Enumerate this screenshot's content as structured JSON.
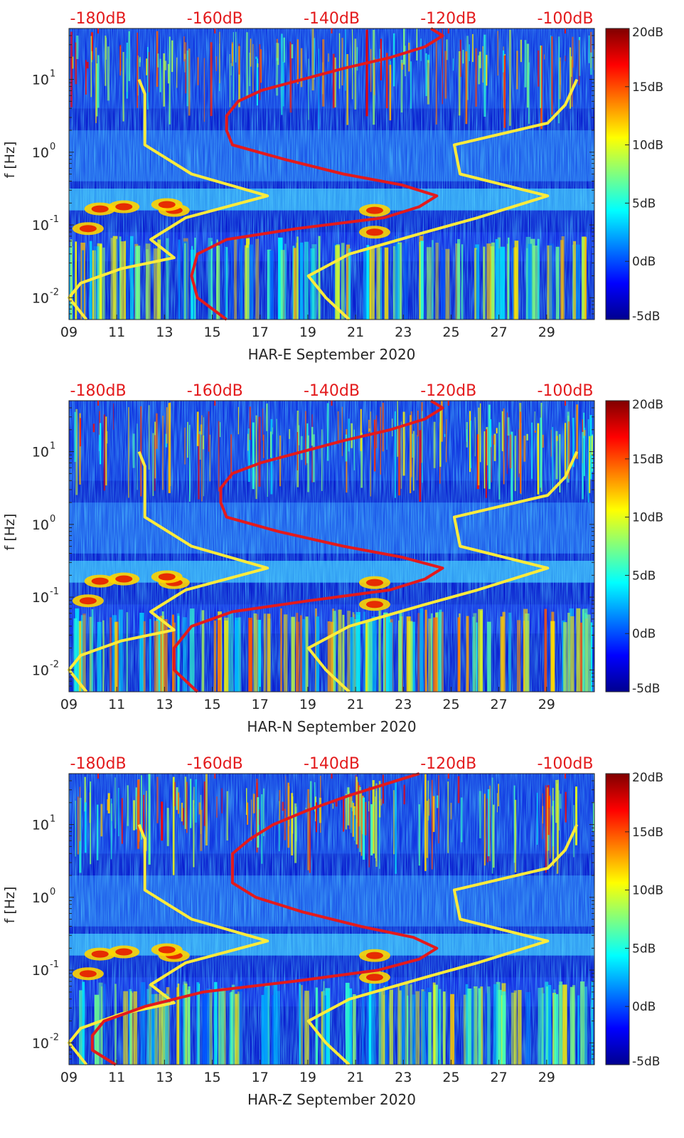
{
  "chart_data": [
    {
      "type": "heatmap",
      "title": "",
      "xlabel": "HAR-E September 2020",
      "ylabel": "f [Hz]",
      "x_ticks": [
        "09",
        "11",
        "13",
        "15",
        "17",
        "19",
        "21",
        "23",
        "25",
        "27",
        "29"
      ],
      "x_tick_values": [
        9,
        11,
        13,
        15,
        17,
        19,
        21,
        23,
        25,
        27,
        29
      ],
      "xlim": [
        9,
        31
      ],
      "y_ticks": [
        "10",
        "10",
        "10",
        "10"
      ],
      "y_tick_exponents": [
        "1",
        "0",
        "-1",
        "-2"
      ],
      "y_tick_values": [
        1,
        0,
        -1,
        -2
      ],
      "ylim_log10": [
        -2.3,
        1.7
      ],
      "y_scale": "log",
      "top_axis": {
        "ticks": [
          "-180dB",
          "-160dB",
          "-140dB",
          "-120dB",
          "-100dB"
        ],
        "values": [
          -180,
          -160,
          -140,
          -120,
          -100
        ],
        "range": [
          -185,
          -95
        ]
      },
      "colorbar": {
        "ticks": [
          "20dB",
          "15dB",
          "10dB",
          "5dB",
          "0dB",
          "-5dB"
        ],
        "values": [
          20,
          15,
          10,
          5,
          0,
          -5
        ],
        "range": [
          -5,
          20
        ]
      },
      "red_curve_logf": [
        -2.3,
        -2.0,
        -1.7,
        -1.4,
        -1.2,
        -1.05,
        -0.9,
        -0.75,
        -0.6,
        -0.45,
        -0.3,
        -0.1,
        0.1,
        0.3,
        0.5,
        0.7,
        0.85,
        1.0,
        1.15,
        1.3,
        1.45,
        1.6,
        1.7
      ],
      "red_curve_db": [
        -158,
        -163,
        -164,
        -163,
        -158,
        -146,
        -131,
        -125,
        -122,
        -128,
        -138,
        -148,
        -157,
        -158,
        -158,
        -156,
        -152,
        -145,
        -138,
        -130,
        -124,
        -121,
        -123
      ],
      "yellow_curves": [
        {
          "name": "low noise model",
          "logf": [
            -2.3,
            -2.0,
            -1.8,
            -1.6,
            -1.45,
            -1.2,
            -0.9,
            -0.6,
            -0.3,
            0.1,
            0.5,
            0.8,
            1.0
          ],
          "db": [
            -182,
            -185,
            -183,
            -176,
            -167,
            -171,
            -165,
            -151,
            -164,
            -172,
            -172,
            -172,
            -173
          ]
        },
        {
          "name": "high noise model",
          "logf": [
            -2.3,
            -2.0,
            -1.7,
            -1.4,
            -1.1,
            -0.9,
            -0.6,
            -0.3,
            0.1,
            0.4,
            0.65,
            1.0
          ],
          "db": [
            -137,
            -141,
            -144,
            -137,
            -124,
            -115,
            -103,
            -118,
            -119,
            -103,
            -100,
            -98
          ]
        }
      ]
    },
    {
      "type": "heatmap",
      "title": "",
      "xlabel": "HAR-N September 2020",
      "ylabel": "f [Hz]",
      "x_ticks": [
        "09",
        "11",
        "13",
        "15",
        "17",
        "19",
        "21",
        "23",
        "25",
        "27",
        "29"
      ],
      "x_tick_values": [
        9,
        11,
        13,
        15,
        17,
        19,
        21,
        23,
        25,
        27,
        29
      ],
      "xlim": [
        9,
        31
      ],
      "y_ticks": [
        "10",
        "10",
        "10",
        "10"
      ],
      "y_tick_exponents": [
        "1",
        "0",
        "-1",
        "-2"
      ],
      "y_tick_values": [
        1,
        0,
        -1,
        -2
      ],
      "ylim_log10": [
        -2.3,
        1.7
      ],
      "y_scale": "log",
      "top_axis": {
        "ticks": [
          "-180dB",
          "-160dB",
          "-140dB",
          "-120dB",
          "-100dB"
        ],
        "values": [
          -180,
          -160,
          -140,
          -120,
          -100
        ],
        "range": [
          -185,
          -95
        ]
      },
      "colorbar": {
        "ticks": [
          "20dB",
          "15dB",
          "10dB",
          "5dB",
          "0dB",
          "-5dB"
        ],
        "values": [
          20,
          15,
          10,
          5,
          0,
          -5
        ],
        "range": [
          -5,
          20
        ]
      },
      "red_curve_logf": [
        -2.3,
        -2.0,
        -1.7,
        -1.4,
        -1.2,
        -1.05,
        -0.9,
        -0.75,
        -0.6,
        -0.45,
        -0.3,
        -0.1,
        0.1,
        0.3,
        0.5,
        0.7,
        0.85,
        1.0,
        1.15,
        1.3,
        1.45,
        1.6,
        1.7
      ],
      "red_curve_db": [
        -163,
        -167,
        -167,
        -164,
        -157,
        -144,
        -130,
        -124,
        -121,
        -128,
        -138,
        -149,
        -158,
        -159,
        -159,
        -157,
        -152,
        -145,
        -138,
        -130,
        -124,
        -121,
        -123
      ],
      "yellow_curves": [
        {
          "name": "low noise model",
          "logf": [
            -2.3,
            -2.0,
            -1.8,
            -1.6,
            -1.45,
            -1.2,
            -0.9,
            -0.6,
            -0.3,
            0.1,
            0.5,
            0.8,
            1.0
          ],
          "db": [
            -182,
            -185,
            -183,
            -176,
            -167,
            -171,
            -165,
            -151,
            -164,
            -172,
            -172,
            -172,
            -173
          ]
        },
        {
          "name": "high noise model",
          "logf": [
            -2.3,
            -2.0,
            -1.7,
            -1.4,
            -1.1,
            -0.9,
            -0.6,
            -0.3,
            0.1,
            0.4,
            0.65,
            1.0
          ],
          "db": [
            -137,
            -141,
            -144,
            -137,
            -124,
            -115,
            -103,
            -118,
            -119,
            -103,
            -100,
            -98
          ]
        }
      ]
    },
    {
      "type": "heatmap",
      "title": "",
      "xlabel": "HAR-Z September 2020",
      "ylabel": "f [Hz]",
      "x_ticks": [
        "09",
        "11",
        "13",
        "15",
        "17",
        "19",
        "21",
        "23",
        "25",
        "27",
        "29"
      ],
      "x_tick_values": [
        9,
        11,
        13,
        15,
        17,
        19,
        21,
        23,
        25,
        27,
        29
      ],
      "xlim": [
        9,
        31
      ],
      "y_ticks": [
        "10",
        "10",
        "10",
        "10"
      ],
      "y_tick_exponents": [
        "1",
        "0",
        "-1",
        "-2"
      ],
      "y_tick_values": [
        1,
        0,
        -1,
        -2
      ],
      "ylim_log10": [
        -2.3,
        1.7
      ],
      "y_scale": "log",
      "top_axis": {
        "ticks": [
          "-180dB",
          "-160dB",
          "-140dB",
          "-120dB",
          "-100dB"
        ],
        "values": [
          -180,
          -160,
          -140,
          -120,
          -100
        ],
        "range": [
          -185,
          -95
        ]
      },
      "colorbar": {
        "ticks": [
          "20dB",
          "15dB",
          "10dB",
          "5dB",
          "0dB",
          "-5dB"
        ],
        "values": [
          20,
          15,
          10,
          5,
          0,
          -5
        ],
        "range": [
          -5,
          20
        ]
      },
      "red_curve_logf": [
        -2.3,
        -2.1,
        -1.9,
        -1.7,
        -1.5,
        -1.3,
        -1.15,
        -1.0,
        -0.85,
        -0.7,
        -0.55,
        -0.4,
        -0.2,
        0.0,
        0.2,
        0.4,
        0.6,
        0.8,
        1.0,
        1.2,
        1.4,
        1.6,
        1.7
      ],
      "red_curve_db": [
        -177,
        -181,
        -181,
        -179,
        -172,
        -162,
        -146,
        -132,
        -125,
        -122,
        -126,
        -135,
        -145,
        -153,
        -157,
        -157,
        -157,
        -154,
        -150,
        -144,
        -137,
        -129,
        -125
      ],
      "yellow_curves": [
        {
          "name": "low noise model",
          "logf": [
            -2.3,
            -2.0,
            -1.8,
            -1.6,
            -1.45,
            -1.2,
            -0.9,
            -0.6,
            -0.3,
            0.1,
            0.5,
            0.8,
            1.0
          ],
          "db": [
            -182,
            -185,
            -183,
            -176,
            -167,
            -171,
            -165,
            -151,
            -164,
            -172,
            -172,
            -172,
            -173
          ]
        },
        {
          "name": "high noise model",
          "logf": [
            -2.3,
            -2.0,
            -1.7,
            -1.4,
            -1.1,
            -0.9,
            -0.6,
            -0.3,
            0.1,
            0.4,
            0.65,
            1.0
          ],
          "db": [
            -137,
            -141,
            -144,
            -137,
            -124,
            -115,
            -103,
            -118,
            -119,
            -103,
            -100,
            -98
          ]
        }
      ]
    }
  ]
}
